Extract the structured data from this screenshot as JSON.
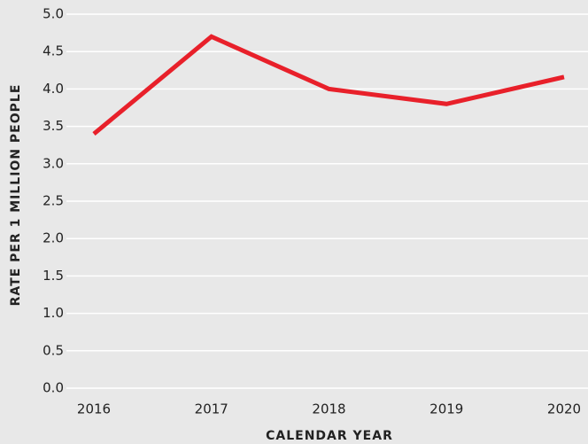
{
  "chart_data": {
    "type": "line",
    "x_label": "CALENDAR YEAR",
    "y_label": "RATE PER 1 MILLION PEOPLE",
    "categories": [
      "2016",
      "2017",
      "2018",
      "2019",
      "2020"
    ],
    "values": [
      3.4,
      4.7,
      4.0,
      3.8,
      4.16
    ],
    "color": "#e8202a",
    "ylim": [
      0,
      5
    ],
    "yticks": [
      {
        "value": 0,
        "label": "0.0"
      },
      {
        "value": 0.5,
        "label": "0.5"
      },
      {
        "value": 1,
        "label": "1.0"
      },
      {
        "value": 1.5,
        "label": "1.5"
      },
      {
        "value": 2,
        "label": "2.0"
      },
      {
        "value": 2.5,
        "label": "2.5"
      },
      {
        "value": 3,
        "label": "3.0"
      },
      {
        "value": 3.5,
        "label": "3.5"
      },
      {
        "value": 4,
        "label": "4.0"
      },
      {
        "value": 4.5,
        "label": "4.5"
      },
      {
        "value": 5,
        "label": "5.0"
      }
    ],
    "grid": true
  }
}
